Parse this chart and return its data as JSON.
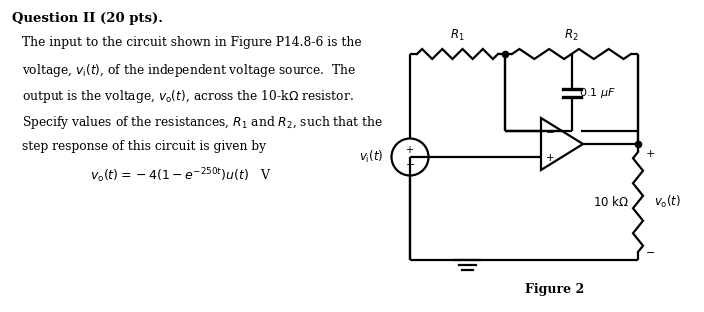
{
  "bg_color": "#ffffff",
  "title_text": "Question II (20 pts).",
  "body_lines": [
    "The input to the circuit shown in Figure P14.8-6 is the",
    "voltage, $v_{\\rm i}(t)$, of the independent voltage source.  The",
    "output is the voltage, $v_{\\rm o}(t)$, across the 10-k$\\Omega$ resistor.",
    "Specify values of the resistances, $R_1$ and $R_2$, such that the",
    "step response of this circuit is given by"
  ],
  "equation": "$v_{\\rm o}(t) = -4(1 - e^{-250t})u(t)$   V",
  "figure_label": "Figure 2",
  "text_color": "#000000",
  "circuit_color": "#000000"
}
